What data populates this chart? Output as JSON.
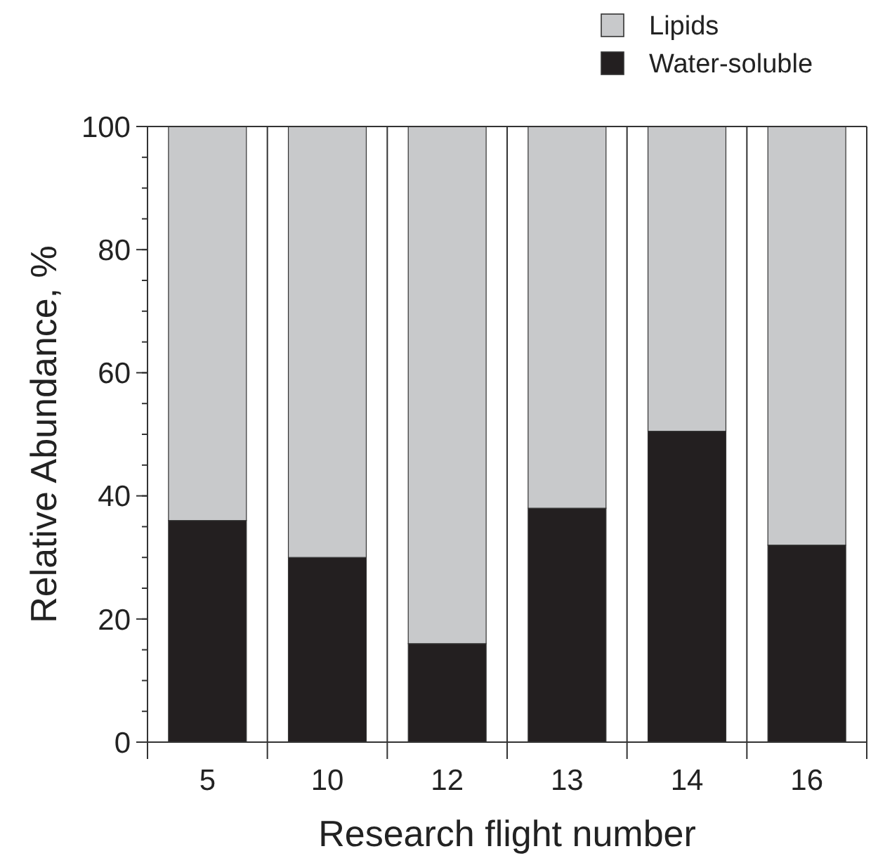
{
  "chart_data": {
    "type": "bar",
    "stacked": true,
    "xlabel": "Research flight number",
    "ylabel": "Relative Abundance, %",
    "categories": [
      "5",
      "10",
      "12",
      "13",
      "14",
      "16"
    ],
    "series": [
      {
        "name": "Water-soluble",
        "color": "#231f20",
        "values": [
          36,
          30,
          16,
          38,
          50.5,
          32
        ]
      },
      {
        "name": "Lipids",
        "color": "#c8c9cb",
        "values": [
          64,
          70,
          84,
          62,
          49.5,
          68
        ]
      }
    ],
    "ylim": [
      0,
      100
    ],
    "yticks": [
      0,
      20,
      40,
      60,
      80,
      100
    ],
    "legend": "top right"
  }
}
